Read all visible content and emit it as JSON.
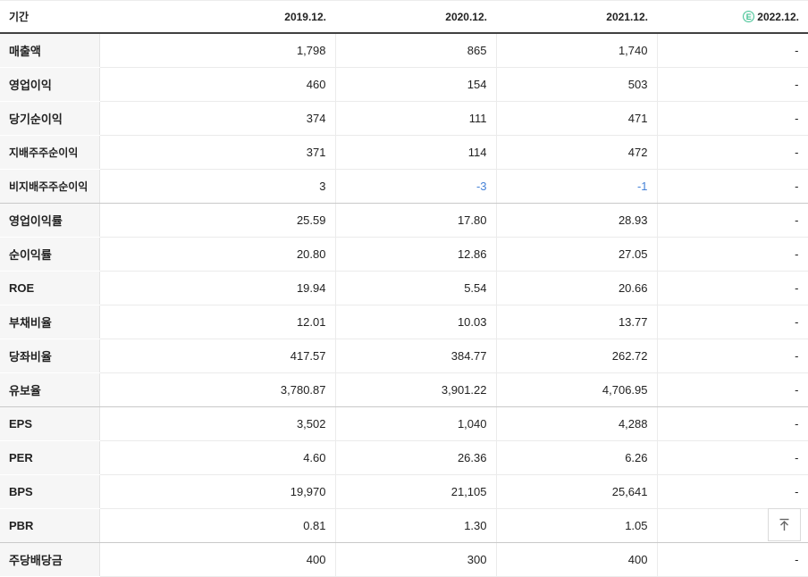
{
  "table": {
    "header": {
      "period_label": "기간",
      "columns": [
        "2019.12.",
        "2020.12.",
        "2021.12.",
        "2022.12."
      ],
      "estimate_badge": "E"
    },
    "rows": [
      {
        "label": "매출액",
        "sub": false,
        "group_end": false,
        "values": [
          "1,798",
          "865",
          "1,740",
          "-"
        ]
      },
      {
        "label": "영업이익",
        "sub": false,
        "group_end": false,
        "values": [
          "460",
          "154",
          "503",
          "-"
        ]
      },
      {
        "label": "당기순이익",
        "sub": false,
        "group_end": false,
        "values": [
          "374",
          "111",
          "471",
          "-"
        ]
      },
      {
        "label": "지배주주순이익",
        "sub": true,
        "group_end": false,
        "values": [
          "371",
          "114",
          "472",
          "-"
        ]
      },
      {
        "label": "비지배주주순이익",
        "sub": true,
        "group_end": true,
        "values": [
          "3",
          "-3",
          "-1",
          "-"
        ]
      },
      {
        "label": "영업이익률",
        "sub": false,
        "group_end": false,
        "values": [
          "25.59",
          "17.80",
          "28.93",
          "-"
        ]
      },
      {
        "label": "순이익률",
        "sub": false,
        "group_end": false,
        "values": [
          "20.80",
          "12.86",
          "27.05",
          "-"
        ]
      },
      {
        "label": "ROE",
        "sub": false,
        "group_end": false,
        "values": [
          "19.94",
          "5.54",
          "20.66",
          "-"
        ]
      },
      {
        "label": "부채비율",
        "sub": false,
        "group_end": false,
        "values": [
          "12.01",
          "10.03",
          "13.77",
          "-"
        ]
      },
      {
        "label": "당좌비율",
        "sub": false,
        "group_end": false,
        "values": [
          "417.57",
          "384.77",
          "262.72",
          "-"
        ]
      },
      {
        "label": "유보율",
        "sub": false,
        "group_end": true,
        "values": [
          "3,780.87",
          "3,901.22",
          "4,706.95",
          "-"
        ]
      },
      {
        "label": "EPS",
        "sub": false,
        "group_end": false,
        "values": [
          "3,502",
          "1,040",
          "4,288",
          "-"
        ]
      },
      {
        "label": "PER",
        "sub": false,
        "group_end": false,
        "values": [
          "4.60",
          "26.36",
          "6.26",
          "-"
        ]
      },
      {
        "label": "BPS",
        "sub": false,
        "group_end": false,
        "values": [
          "19,970",
          "21,105",
          "25,641",
          "-"
        ]
      },
      {
        "label": "PBR",
        "sub": false,
        "group_end": true,
        "values": [
          "0.81",
          "1.30",
          "1.05",
          "-"
        ]
      },
      {
        "label": "주당배당금",
        "sub": false,
        "group_end": false,
        "values": [
          "400",
          "300",
          "400",
          "-"
        ]
      }
    ]
  },
  "colors": {
    "negative_value": "#4682d7",
    "estimate_green": "#46c396",
    "header_border": "#414141",
    "label_cell_bg": "#f6f6f6"
  }
}
